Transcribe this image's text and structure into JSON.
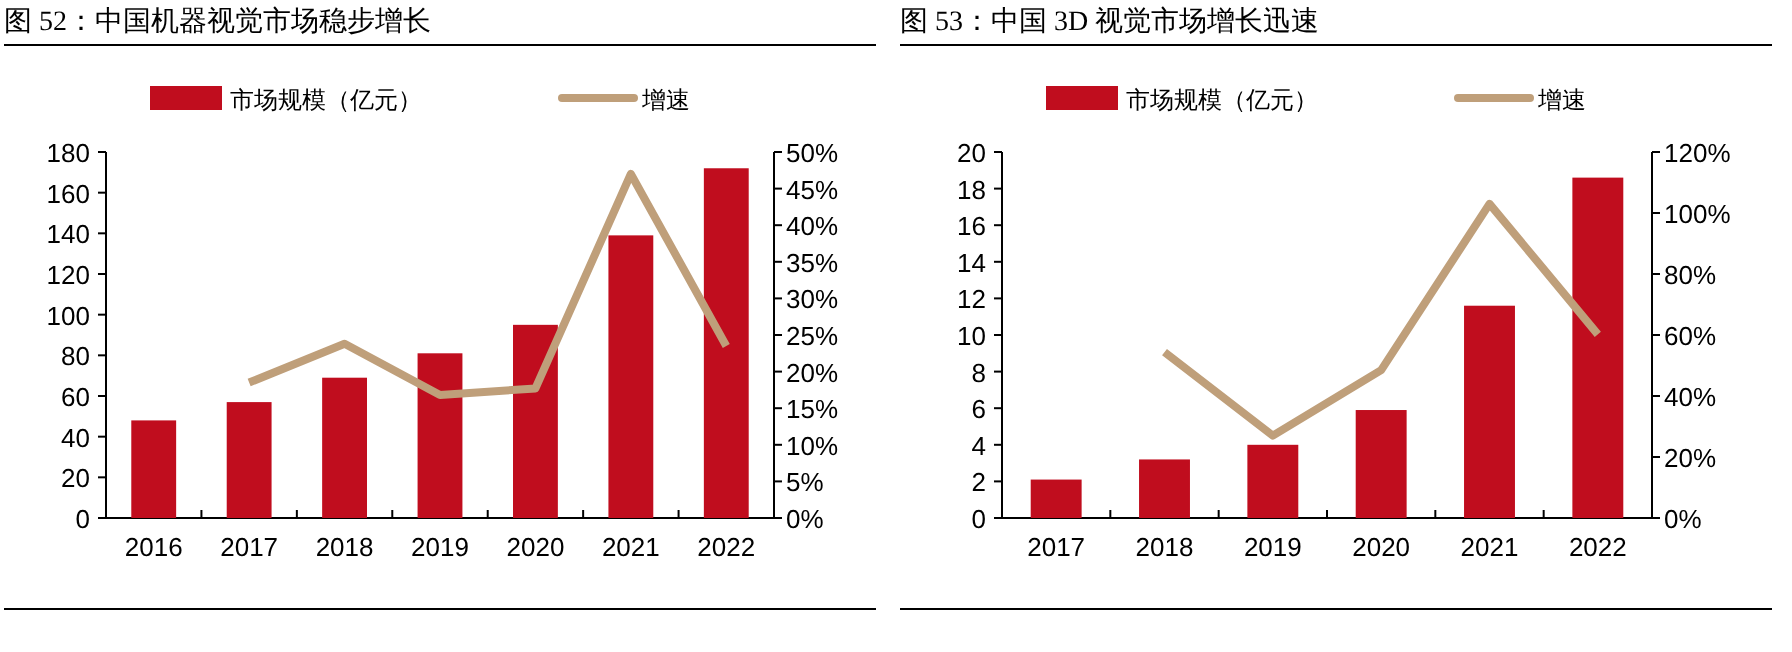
{
  "chart_data": [
    {
      "type": "bar",
      "title": "图 52：中国机器视觉市场稳步增长",
      "categories": [
        "2016",
        "2017",
        "2018",
        "2019",
        "2020",
        "2021",
        "2022"
      ],
      "series": [
        {
          "name": "市场规模（亿元）",
          "color": "#c00d1e",
          "values": [
            48,
            57,
            69,
            81,
            95,
            139,
            172
          ]
        },
        {
          "name": "增速",
          "type": "line",
          "axis": "y2",
          "color": "#bf9f7a",
          "values": [
            null,
            18.5,
            23.8,
            16.8,
            17.7,
            47,
            23.5
          ]
        }
      ],
      "ylim": [
        0,
        180
      ],
      "yticks": [
        0,
        20,
        40,
        60,
        80,
        100,
        120,
        140,
        160,
        180
      ],
      "y2lim": [
        0,
        50
      ],
      "y2ticks": [
        {
          "value": 0,
          "label": "0%"
        },
        {
          "value": 5,
          "label": "5%"
        },
        {
          "value": 10,
          "label": "10%"
        },
        {
          "value": 15,
          "label": "15%"
        },
        {
          "value": 20,
          "label": "20%"
        },
        {
          "value": 25,
          "label": "25%"
        },
        {
          "value": 30,
          "label": "30%"
        },
        {
          "value": 35,
          "label": "35%"
        },
        {
          "value": 40,
          "label": "40%"
        },
        {
          "value": 45,
          "label": "45%"
        },
        {
          "value": 50,
          "label": "50%"
        }
      ],
      "legend": "top",
      "grid": false
    },
    {
      "type": "bar",
      "title": "图 53：中国 3D 视觉市场增长迅速",
      "categories": [
        "2017",
        "2018",
        "2019",
        "2020",
        "2021",
        "2022"
      ],
      "series": [
        {
          "name": "市场规模（亿元）",
          "color": "#c00d1e",
          "values": [
            2.1,
            3.2,
            4.0,
            5.9,
            11.6,
            18.6
          ]
        },
        {
          "name": "增速",
          "type": "line",
          "axis": "y2",
          "color": "#bf9f7a",
          "values": [
            null,
            54.4,
            27,
            48.5,
            103,
            60.2
          ]
        }
      ],
      "ylim": [
        0,
        20
      ],
      "yticks": [
        0,
        2,
        4,
        6,
        8,
        10,
        12,
        14,
        16,
        18,
        20
      ],
      "y2lim": [
        0,
        120
      ],
      "y2ticks": [
        {
          "value": 0,
          "label": "0%"
        },
        {
          "value": 20,
          "label": "20%"
        },
        {
          "value": 40,
          "label": "40%"
        },
        {
          "value": 60,
          "label": "60%"
        },
        {
          "value": 80,
          "label": "80%"
        },
        {
          "value": 100,
          "label": "100%"
        },
        {
          "value": 120,
          "label": "120%"
        }
      ],
      "legend": "top",
      "grid": false
    }
  ]
}
